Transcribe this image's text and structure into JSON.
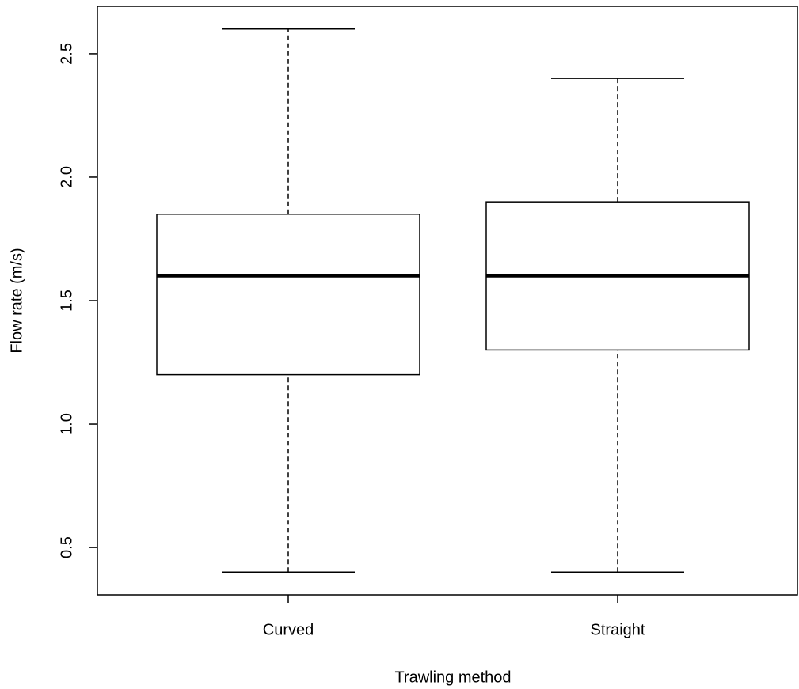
{
  "chart_data": {
    "type": "box",
    "x_label": "Trawling method",
    "y_label": "Flow rate (m/s)",
    "categories": [
      "Curved",
      "Straight"
    ],
    "min": [
      0.4,
      0.4
    ],
    "q1": [
      1.2,
      1.3
    ],
    "median": [
      1.6,
      1.6
    ],
    "q3": [
      1.85,
      1.9
    ],
    "max": [
      2.6,
      2.4
    ],
    "color": "#000000",
    "ylim": [
      0.308,
      2.692
    ],
    "yticks": [
      0.5,
      {
        "value": 1,
        "label": "1.0"
      },
      1.5,
      {
        "value": 2,
        "label": "2.0"
      },
      2.5
    ]
  }
}
